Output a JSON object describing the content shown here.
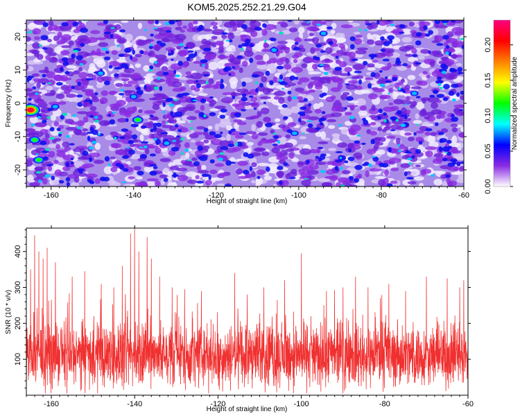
{
  "figure_title": "KOM5.2025.252.21.29.G04",
  "chart_data": [
    {
      "type": "heatmap",
      "title": "",
      "xlabel": "Height of straight line (km)",
      "ylabel": "Frequency (Hz)",
      "xlim": [
        -166,
        -60
      ],
      "ylim": [
        -25,
        25
      ],
      "xticks": [
        -160,
        -140,
        -120,
        -100,
        -80,
        -60
      ],
      "yticks": [
        -20,
        -10,
        0,
        10,
        20
      ],
      "colorbar": {
        "label": "Normalized spectral amplitude",
        "range": [
          0,
          0.235
        ],
        "ticks": [
          0.0,
          0.05,
          0.1,
          0.15,
          0.2
        ],
        "colors": [
          "#ffffff",
          "#8a2be2",
          "#0000ff",
          "#00ffff",
          "#00ff00",
          "#ffff00",
          "#ff8000",
          "#ff0000",
          "#ff0080"
        ]
      },
      "peaks": [
        {
          "x": -165,
          "y": -2,
          "value": 0.22
        },
        {
          "x": -164,
          "y": -11,
          "value": 0.14
        },
        {
          "x": -163,
          "y": -17,
          "value": 0.13
        },
        {
          "x": -139,
          "y": -5,
          "value": 0.13
        },
        {
          "x": -132,
          "y": -12,
          "value": 0.11
        },
        {
          "x": -140,
          "y": 2,
          "value": 0.11
        },
        {
          "x": -148,
          "y": 9,
          "value": 0.1
        },
        {
          "x": -159,
          "y": -1,
          "value": 0.09
        },
        {
          "x": -101,
          "y": -9,
          "value": 0.09
        },
        {
          "x": -94,
          "y": 21,
          "value": 0.1
        },
        {
          "x": -106,
          "y": 16,
          "value": 0.1
        },
        {
          "x": -72,
          "y": 3,
          "value": 0.09
        }
      ]
    },
    {
      "type": "line",
      "title": "",
      "xlabel": "Height of straight line (km)",
      "ylabel": "SNR (10 * v/v)",
      "xlim": [
        -166,
        -60
      ],
      "ylim": [
        0,
        465
      ],
      "xticks": [
        -160,
        -140,
        -120,
        -100,
        -80,
        -60
      ],
      "yticks": [
        100,
        200,
        300,
        400
      ],
      "color": "#f03030",
      "baseline": 110,
      "spikes": [
        {
          "x": -165,
          "y": 350
        },
        {
          "x": -164,
          "y": 445
        },
        {
          "x": -163,
          "y": 400
        },
        {
          "x": -162,
          "y": 380
        },
        {
          "x": -161,
          "y": 410
        },
        {
          "x": -159,
          "y": 370
        },
        {
          "x": -155,
          "y": 330
        },
        {
          "x": -152,
          "y": 345
        },
        {
          "x": -148,
          "y": 310
        },
        {
          "x": -145,
          "y": 300
        },
        {
          "x": -143,
          "y": 360
        },
        {
          "x": -141,
          "y": 450
        },
        {
          "x": -140,
          "y": 465
        },
        {
          "x": -139,
          "y": 400
        },
        {
          "x": -137,
          "y": 440
        },
        {
          "x": -136,
          "y": 380
        },
        {
          "x": -134,
          "y": 330
        },
        {
          "x": -131,
          "y": 300
        },
        {
          "x": -128,
          "y": 295
        },
        {
          "x": -124,
          "y": 290
        },
        {
          "x": -116,
          "y": 340
        },
        {
          "x": -113,
          "y": 280
        },
        {
          "x": -109,
          "y": 300
        },
        {
          "x": -104,
          "y": 320
        },
        {
          "x": -100,
          "y": 395
        },
        {
          "x": -94,
          "y": 290
        },
        {
          "x": -90,
          "y": 300
        },
        {
          "x": -87,
          "y": 330
        },
        {
          "x": -84,
          "y": 300
        },
        {
          "x": -79,
          "y": 310
        },
        {
          "x": -75,
          "y": 290
        },
        {
          "x": -70,
          "y": 330
        },
        {
          "x": -65,
          "y": 325
        },
        {
          "x": -62,
          "y": 300
        },
        {
          "x": -61,
          "y": 320
        }
      ]
    }
  ]
}
